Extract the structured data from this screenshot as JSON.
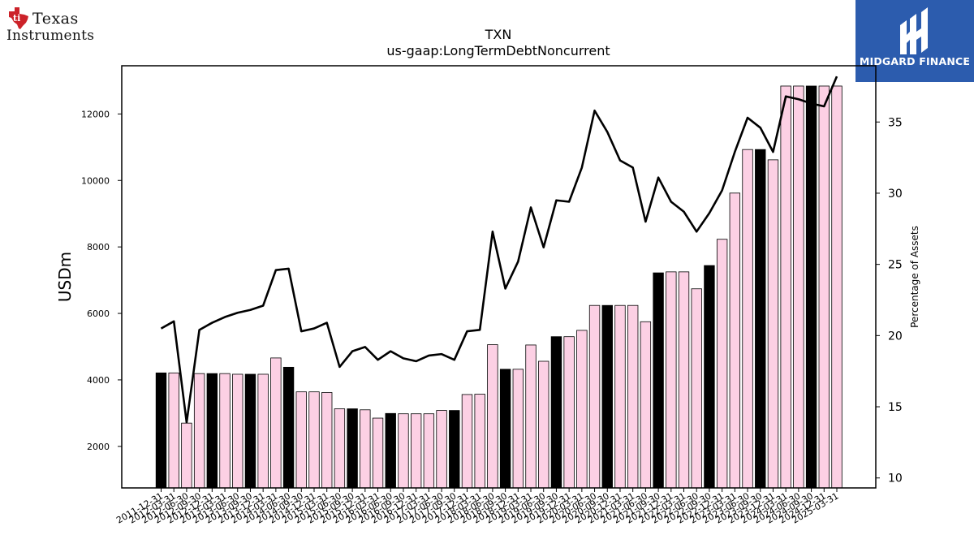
{
  "brand": {
    "company_logo_line1": "Texas",
    "company_logo_line2": "Instruments",
    "publisher_name": "MIDGARD FINANCE"
  },
  "colors": {
    "bar_fill": "#fcd0e4",
    "bar_highlight_fill": "#000000",
    "bar_stroke": "#000000",
    "line_color": "#000000",
    "ti_red": "#cc2229",
    "publisher_bg": "#2c5cae"
  },
  "chart_data": {
    "type": "bar",
    "title": "TXN",
    "subtitle": "us-gaap:LongTermDebtNoncurrent",
    "ylabel": "USDm",
    "y2label": "Percentage of Assets",
    "ylim": [
      750,
      13450
    ],
    "y2lim": [
      9.3,
      38.95
    ],
    "yticks": [
      "2000",
      "4000",
      "6000",
      "8000",
      "10000",
      "12000"
    ],
    "y2ticks": [
      "10",
      "15",
      "20",
      "25",
      "30",
      "35"
    ],
    "categories": [
      "2011-12-31",
      "2012-03-31",
      "2012-06-30",
      "2012-09-30",
      "2012-12-31",
      "2013-03-31",
      "2013-06-30",
      "2013-09-30",
      "2013-12-31",
      "2014-03-31",
      "2014-06-30",
      "2014-09-30",
      "2014-12-31",
      "2015-03-31",
      "2015-06-30",
      "2015-09-30",
      "2015-12-31",
      "2016-03-31",
      "2016-06-30",
      "2016-09-30",
      "2016-12-31",
      "2017-03-31",
      "2017-06-30",
      "2017-09-30",
      "2017-12-31",
      "2018-03-31",
      "2018-06-30",
      "2018-09-30",
      "2018-12-31",
      "2019-03-31",
      "2019-06-30",
      "2019-09-30",
      "2019-12-31",
      "2020-03-31",
      "2020-06-30",
      "2020-09-30",
      "2020-12-31",
      "2021-03-31",
      "2021-06-30",
      "2021-09-30",
      "2021-12-31",
      "2022-03-31",
      "2022-06-30",
      "2022-09-30",
      "2022-12-31",
      "2023-03-31",
      "2023-06-30",
      "2023-09-30",
      "2023-12-31",
      "2024-03-31",
      "2024-06-30",
      "2024-09-30",
      "2024-12-31",
      "2025-03-31"
    ],
    "xtick_labels": [
      "2011-12-31",
      "2012-03-31",
      "2012-06-30",
      "2012-09-30",
      "2012-12-31",
      "2013-03-31",
      "2013-06-30",
      "2013-09-30",
      "2013-12-31",
      "2014-03-31",
      "2014-06-30",
      "2014-09-30",
      "2014-12-31",
      "2015-03-31",
      "2015-06-30",
      "2015-09-30",
      "2015-12-31",
      "2016-03-31",
      "2016-06-30",
      "2016-09-30",
      "2016-12-31",
      "2017-03-31",
      "2017-06-30",
      "2017-09-30",
      "2017-12-31",
      "2018-03-31",
      "2018-06-30",
      "2018-09-30",
      "2018-12-31",
      "2019-03-31",
      "2019-06-30",
      "2019-09-30",
      "2019-12-31",
      "2020-03-31",
      "2020-06-30",
      "2020-09-30",
      "2020-12-31",
      "2021-03-31",
      "2021-06-30",
      "2021-09-30",
      "2021-12-31",
      "2022-03-31",
      "2022-06-30",
      "2022-09-30",
      "2022-12-31",
      "2023-03-31",
      "2023-06-30",
      "2023-09-30",
      "2023-12-31",
      "2024-03-31",
      "2024-06-30",
      "2024-09-30",
      "2024-12-31",
      "2025-03-31"
    ],
    "series": [
      {
        "values": [
          4210,
          4210,
          2700,
          4190,
          4190,
          4190,
          4170,
          4170,
          4170,
          4660,
          4380,
          3640,
          3640,
          3620,
          3130,
          3130,
          3100,
          2850,
          2990,
          2980,
          2980,
          2980,
          3080,
          3080,
          3560,
          3570,
          5060,
          4320,
          4320,
          5050,
          4560,
          5300,
          5300,
          5490,
          6240,
          6240,
          6240,
          6240,
          5750,
          7220,
          7250,
          7250,
          6740,
          7440,
          8230,
          9620,
          10930,
          10930,
          10620,
          12840,
          12840,
          12840,
          12840,
          12840
        ],
        "highlight": [
          true,
          false,
          false,
          false,
          true,
          false,
          false,
          true,
          false,
          false,
          true,
          false,
          false,
          false,
          false,
          true,
          false,
          false,
          true,
          false,
          false,
          false,
          false,
          true,
          false,
          false,
          false,
          true,
          false,
          false,
          false,
          true,
          false,
          false,
          false,
          true,
          false,
          false,
          false,
          true,
          false,
          false,
          false,
          true,
          false,
          false,
          false,
          true,
          false,
          false,
          false,
          true,
          false,
          false
        ]
      },
      {
        "axis": "right",
        "type": "line",
        "values": [
          20.5,
          21.0,
          13.9,
          20.4,
          20.9,
          21.3,
          21.6,
          21.8,
          22.1,
          24.6,
          24.7,
          20.3,
          20.5,
          20.9,
          17.8,
          18.9,
          19.2,
          18.3,
          18.9,
          18.4,
          18.2,
          18.6,
          18.7,
          18.3,
          20.3,
          20.4,
          27.3,
          23.3,
          25.2,
          29.0,
          26.2,
          29.5,
          29.4,
          31.8,
          35.8,
          34.3,
          32.3,
          31.8,
          28.0,
          31.1,
          29.4,
          28.7,
          27.3,
          28.6,
          30.2,
          32.9,
          35.3,
          34.6,
          32.9,
          36.8,
          36.6,
          36.3,
          36.1,
          38.2
        ]
      }
    ]
  }
}
